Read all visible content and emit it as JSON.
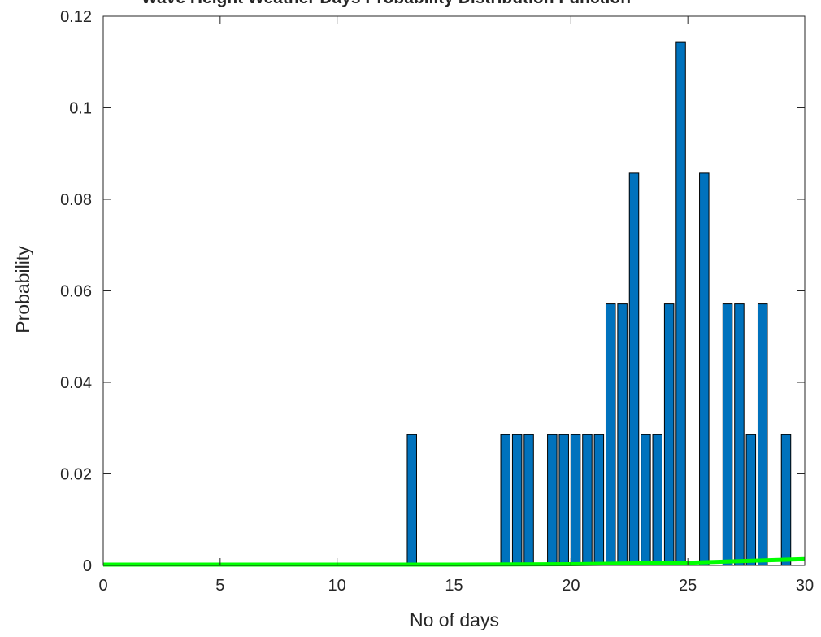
{
  "chart_data": {
    "type": "bar",
    "title": "Wave Height Weather Days Probability Distribution Function",
    "xlabel": "No of days",
    "ylabel": "Probability",
    "xlim": [
      0,
      30
    ],
    "ylim": [
      0,
      0.12
    ],
    "grid": false,
    "bar_width": 0.4,
    "x_ticks": [
      "0",
      "5",
      "10",
      "15",
      "20",
      "25",
      "30"
    ],
    "y_ticks": [
      "0",
      "0.02",
      "0.04",
      "0.06",
      "0.08",
      "0.1",
      "0.12"
    ],
    "series": [
      {
        "type": "bar",
        "color": "#0072BD",
        "x": [
          13.2,
          17.2,
          17.7,
          18.2,
          19.2,
          19.7,
          20.2,
          20.7,
          21.2,
          21.7,
          22.2,
          22.7,
          23.2,
          23.7,
          24.2,
          24.7,
          25.7,
          26.7,
          27.2,
          27.7,
          28.2,
          29.2
        ],
        "values": [
          0.02857,
          0.02857,
          0.02857,
          0.02857,
          0.02857,
          0.02857,
          0.02857,
          0.02857,
          0.02857,
          0.05714,
          0.05714,
          0.08571,
          0.02857,
          0.02857,
          0.05714,
          0.11429,
          0.08571,
          0.05714,
          0.05714,
          0.02857,
          0.05714,
          0.02857
        ]
      },
      {
        "type": "line",
        "color": "#00FF00",
        "x": [
          0,
          5,
          10,
          15,
          20,
          25,
          30
        ],
        "values": [
          0.0,
          0.0,
          0.0,
          0.0,
          0.0001,
          0.0004,
          0.0012
        ]
      }
    ]
  }
}
